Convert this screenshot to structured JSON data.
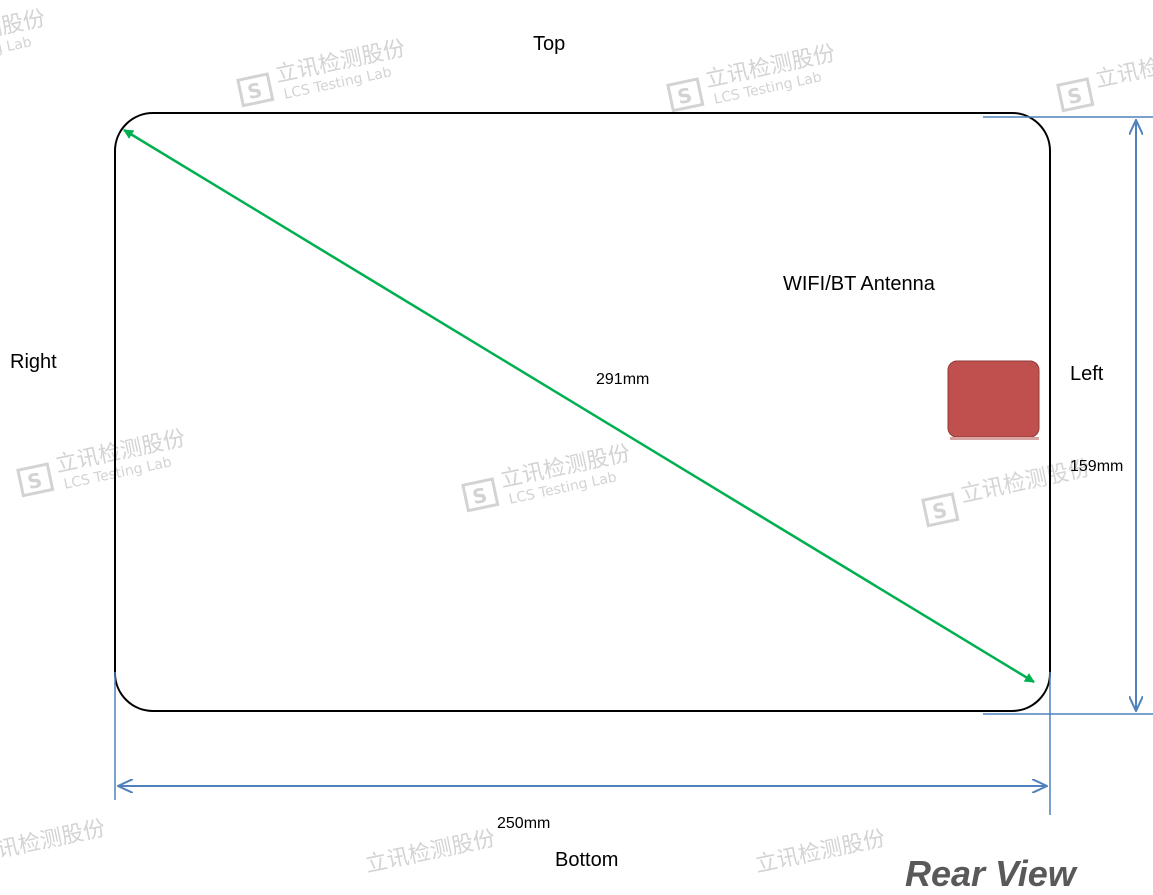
{
  "labels": {
    "top": "Top",
    "bottom": "Bottom",
    "left": "Left",
    "right": "Right",
    "antenna": "WIFI/BT Antenna",
    "view": "Rear View"
  },
  "dimensions": {
    "diagonal": "291mm",
    "width": "250mm",
    "height": "159mm"
  },
  "watermark": {
    "chinese": "立讯检测股份",
    "english": "LCS Testing Lab"
  },
  "colors": {
    "outline": "#000000",
    "diagonal_arrow": "#00b050",
    "dimension_lines": "#4f81bd",
    "antenna_fill": "#c0504d",
    "watermark": "#d0d0d0"
  }
}
